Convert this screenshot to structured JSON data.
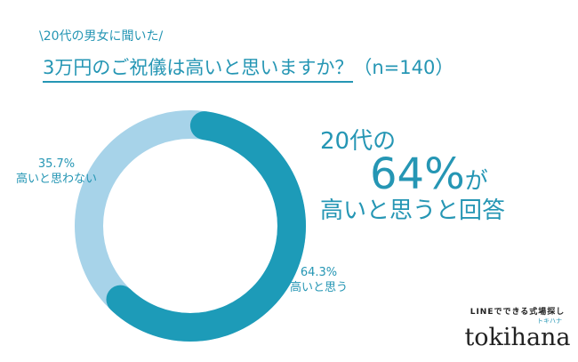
{
  "subtitle": "\\20代の男女に聞いた/",
  "title": {
    "question": "3万円のご祝儀は高いと思いますか？",
    "n": "（n=140）"
  },
  "chart_data": {
    "type": "pie",
    "title": "3万円のご祝儀は高いと思いますか？（n=140）",
    "categories": [
      "高いと思う",
      "高いと思わない"
    ],
    "values": [
      64.3,
      35.7
    ],
    "value_labels": [
      "64.3%",
      "35.7%"
    ],
    "colors": [
      "#1d9bb8",
      "#a7d3e9"
    ]
  },
  "headline": {
    "line1": "20代の",
    "pct": "64%",
    "ga": "が",
    "line3": "高いと思うと回答"
  },
  "logo": {
    "tagline": "LINEでできる式場探し",
    "name": "tokihana",
    "kana": "トキハナ"
  }
}
